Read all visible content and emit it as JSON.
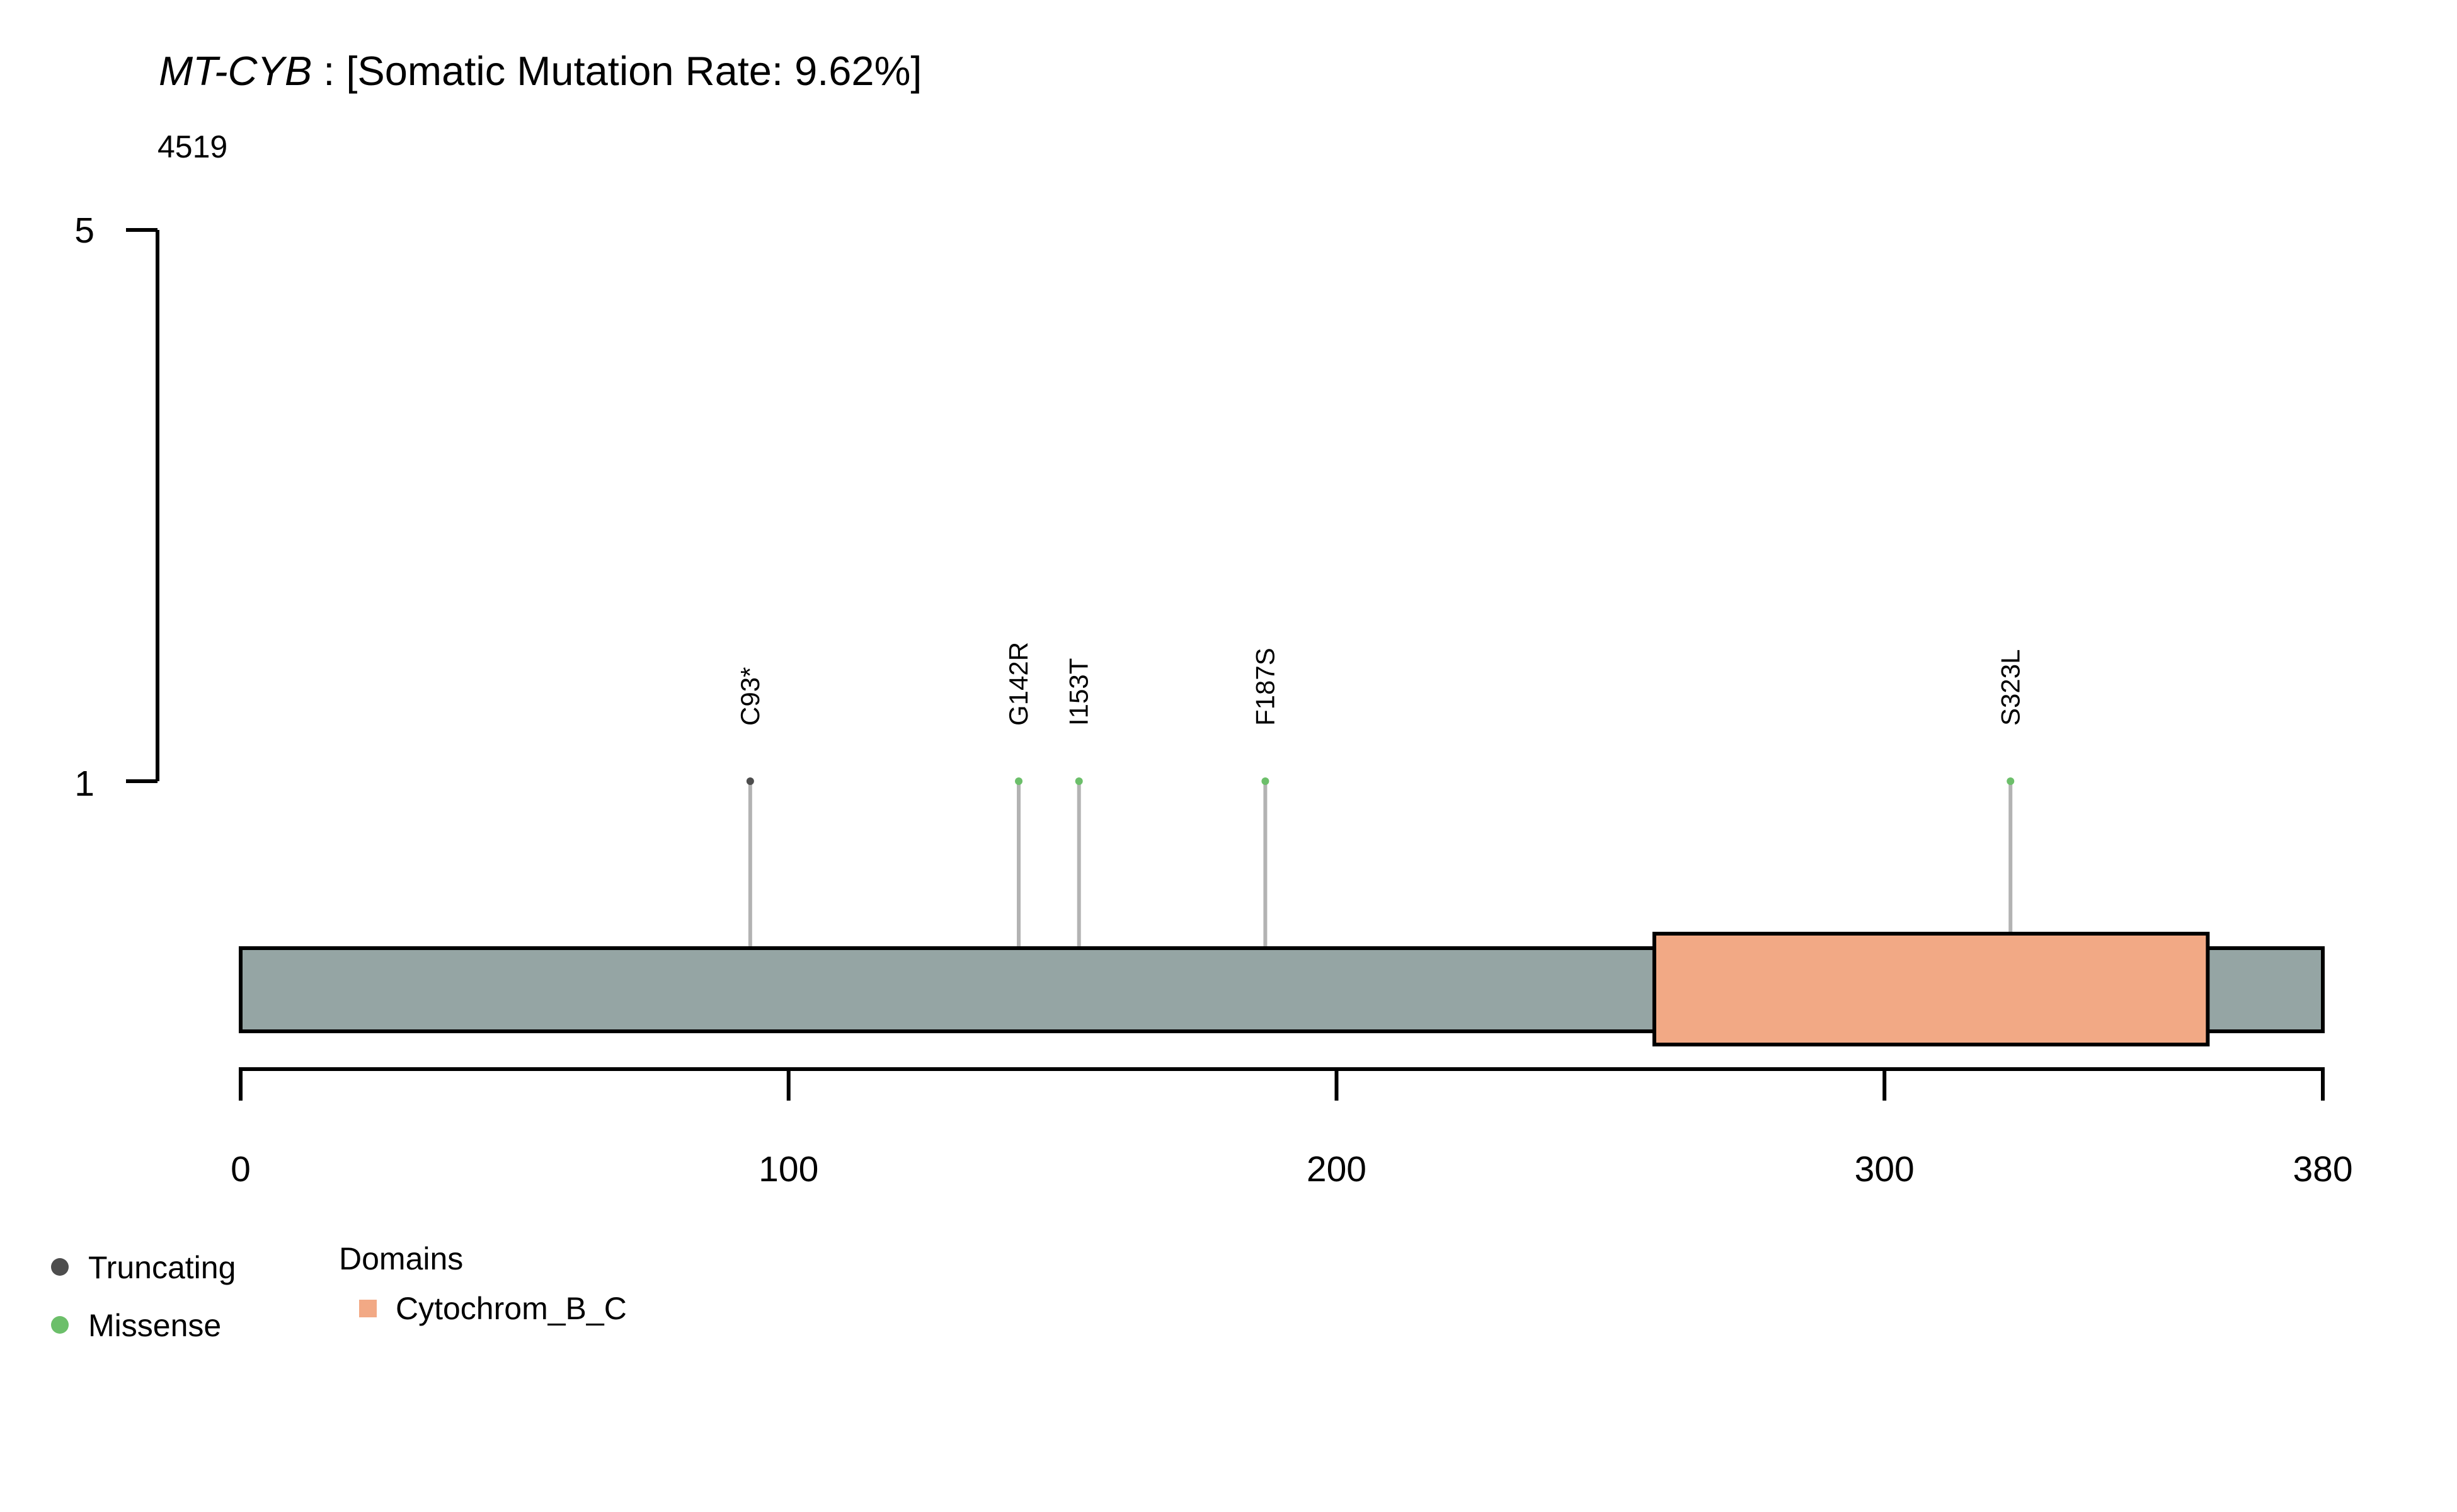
{
  "chart_data": {
    "type": "lollipop",
    "title": {
      "gene": "MT-CYB",
      "rest": " : [Somatic Mutation Rate: 9.62%]"
    },
    "sample_label": "4519",
    "protein_length": 380,
    "x_ticks": [
      "0",
      "100",
      "200",
      "300",
      "380"
    ],
    "x_tick_values": [
      0,
      100,
      200,
      300,
      380
    ],
    "y_ticks": [
      "1",
      "5"
    ],
    "y_tick_values": [
      1,
      5
    ],
    "ylim": [
      1,
      5
    ],
    "backbone_color": "#95a5a4",
    "stem_color": "#b3b3b3",
    "domains": [
      {
        "name": "Cytochrom_B_C",
        "start": 258,
        "end": 359,
        "color": "#f2a985"
      }
    ],
    "mutations": [
      {
        "label": "C93*",
        "position": 93,
        "count": 1,
        "class": "Truncating"
      },
      {
        "label": "G142R",
        "position": 142,
        "count": 1,
        "class": "Missense"
      },
      {
        "label": "I153T",
        "position": 153,
        "count": 1,
        "class": "Missense"
      },
      {
        "label": "F187S",
        "position": 187,
        "count": 1,
        "class": "Missense"
      },
      {
        "label": "S323L",
        "position": 323,
        "count": 1,
        "class": "Missense"
      }
    ],
    "variant_legend": [
      {
        "label": "Truncating",
        "color": "#4d4d4d"
      },
      {
        "label": "Missense",
        "color": "#6cbf6a"
      }
    ],
    "domain_legend": {
      "title": "Domains",
      "items": [
        {
          "label": "Cytochrom_B_C",
          "color": "#f2a985"
        }
      ]
    }
  }
}
